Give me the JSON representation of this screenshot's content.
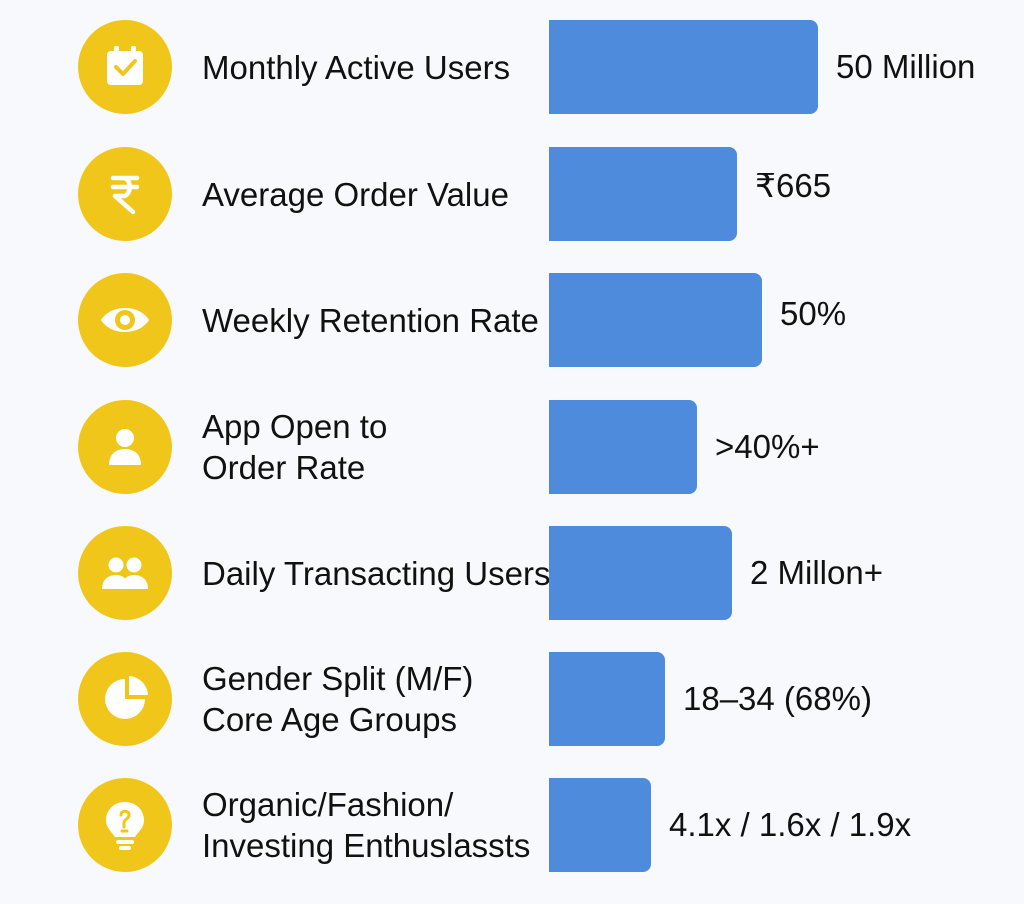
{
  "chart_data": {
    "type": "bar",
    "orientation": "horizontal",
    "rows": [
      {
        "label": "Monthly Active Users",
        "value_label": "50 Million",
        "icon": "calendar-check-icon"
      },
      {
        "label": "Average Order Value",
        "value_label": "₹665",
        "icon": "rupee-icon"
      },
      {
        "label": "Weekly Retention Rate",
        "value_label": "50%",
        "icon": "eye-icon"
      },
      {
        "label": "App Open to\nOrder Rate",
        "value_label": ">40%+",
        "icon": "user-icon"
      },
      {
        "label": "Daily Transacting Users",
        "value_label": "2 Millon+",
        "icon": "users-icon"
      },
      {
        "label": "Gender Split (M/F)\nCore Age Groups",
        "value_label": "18–34 (68%)",
        "icon": "pie-chart-icon"
      },
      {
        "label": "Organic/Fashion/\nInvesting Enthuslassts",
        "value_label": "4.1x / 1.6x / 1.9x",
        "icon": "lightbulb-icon"
      }
    ],
    "bar_fraction": [
      1.0,
      0.7,
      0.79,
      0.55,
      0.68,
      0.43,
      0.38
    ],
    "colors": {
      "bar": "#4f8bdc",
      "icon_circle": "#f1c61a",
      "icon_glyph": "#ffffff",
      "text": "#111111",
      "background": "#f8f9fd"
    }
  }
}
